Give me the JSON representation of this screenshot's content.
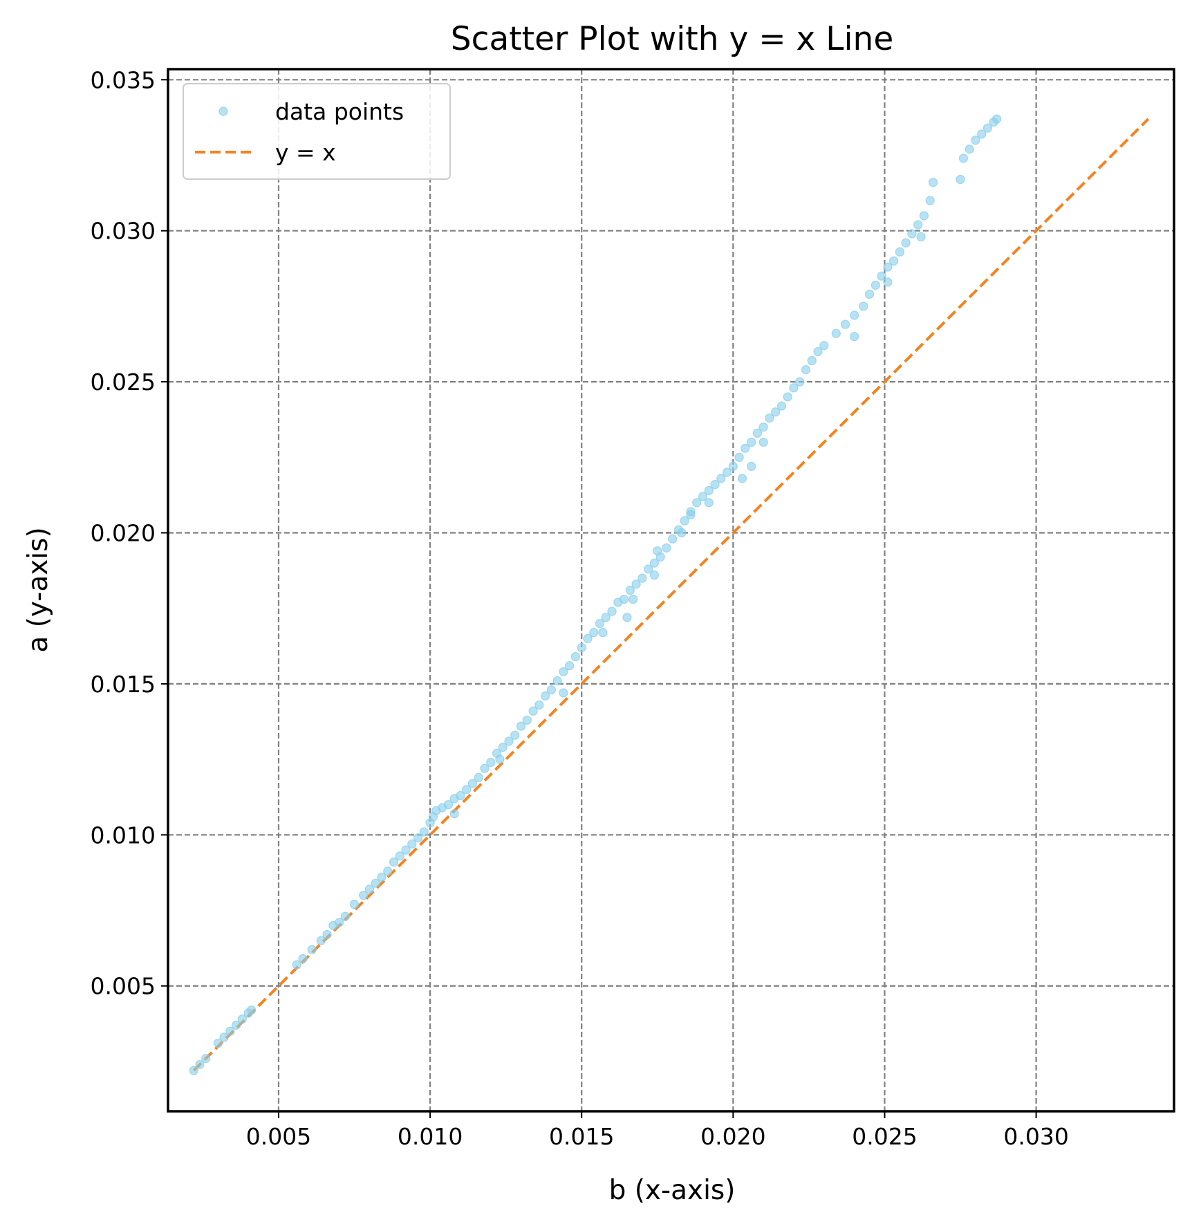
{
  "chart_data": {
    "type": "scatter",
    "title": "Scatter Plot with y = x Line",
    "xlabel": "b (x-axis)",
    "ylabel": "a (y-axis)",
    "xlim": [
      0.00135,
      0.03455
    ],
    "ylim": [
      0.00085,
      0.03535
    ],
    "x_ticks": [
      0.005,
      0.01,
      0.015,
      0.02,
      0.025,
      0.03
    ],
    "x_tick_labels": [
      "0.005",
      "0.010",
      "0.015",
      "0.020",
      "0.025",
      "0.030"
    ],
    "y_ticks": [
      0.005,
      0.01,
      0.015,
      0.02,
      0.025,
      0.03,
      0.035
    ],
    "y_tick_labels": [
      "0.005",
      "0.010",
      "0.015",
      "0.020",
      "0.025",
      "0.030",
      "0.035"
    ],
    "grid": true,
    "legend_position": "top-left",
    "series": [
      {
        "name": "data points",
        "kind": "scatter",
        "color": "#87ceeb",
        "points": [
          [
            0.0022,
            0.0022
          ],
          [
            0.0024,
            0.0024
          ],
          [
            0.0026,
            0.0026
          ],
          [
            0.003,
            0.0031
          ],
          [
            0.0032,
            0.0033
          ],
          [
            0.0034,
            0.0035
          ],
          [
            0.0036,
            0.0037
          ],
          [
            0.0038,
            0.0039
          ],
          [
            0.004,
            0.0041
          ],
          [
            0.0041,
            0.0042
          ],
          [
            0.0056,
            0.0057
          ],
          [
            0.0058,
            0.0059
          ],
          [
            0.0061,
            0.0062
          ],
          [
            0.0064,
            0.0065
          ],
          [
            0.0066,
            0.0067
          ],
          [
            0.0068,
            0.007
          ],
          [
            0.007,
            0.0071
          ],
          [
            0.0072,
            0.0073
          ],
          [
            0.0075,
            0.0077
          ],
          [
            0.0078,
            0.008
          ],
          [
            0.008,
            0.0082
          ],
          [
            0.0082,
            0.0084
          ],
          [
            0.0084,
            0.0086
          ],
          [
            0.0086,
            0.0088
          ],
          [
            0.0088,
            0.0091
          ],
          [
            0.009,
            0.0093
          ],
          [
            0.0092,
            0.0095
          ],
          [
            0.0094,
            0.0097
          ],
          [
            0.0096,
            0.0099
          ],
          [
            0.0098,
            0.0101
          ],
          [
            0.01,
            0.0104
          ],
          [
            0.0101,
            0.0106
          ],
          [
            0.0102,
            0.0108
          ],
          [
            0.0104,
            0.0109
          ],
          [
            0.0106,
            0.011
          ],
          [
            0.0108,
            0.0112
          ],
          [
            0.011,
            0.0113
          ],
          [
            0.0112,
            0.0115
          ],
          [
            0.0114,
            0.0117
          ],
          [
            0.0116,
            0.0119
          ],
          [
            0.0118,
            0.0122
          ],
          [
            0.012,
            0.0124
          ],
          [
            0.0122,
            0.0127
          ],
          [
            0.0124,
            0.0129
          ],
          [
            0.0126,
            0.0131
          ],
          [
            0.0128,
            0.0133
          ],
          [
            0.013,
            0.0136
          ],
          [
            0.0132,
            0.0138
          ],
          [
            0.0134,
            0.0141
          ],
          [
            0.0136,
            0.0143
          ],
          [
            0.0138,
            0.0146
          ],
          [
            0.014,
            0.0148
          ],
          [
            0.0142,
            0.0151
          ],
          [
            0.0144,
            0.0154
          ],
          [
            0.0146,
            0.0156
          ],
          [
            0.0148,
            0.0159
          ],
          [
            0.015,
            0.0162
          ],
          [
            0.0152,
            0.0165
          ],
          [
            0.0154,
            0.0167
          ],
          [
            0.0156,
            0.017
          ],
          [
            0.0158,
            0.0172
          ],
          [
            0.016,
            0.0174
          ],
          [
            0.0162,
            0.0177
          ],
          [
            0.0164,
            0.0178
          ],
          [
            0.0166,
            0.0181
          ],
          [
            0.0168,
            0.0183
          ],
          [
            0.017,
            0.0185
          ],
          [
            0.0172,
            0.0188
          ],
          [
            0.0174,
            0.019
          ],
          [
            0.0176,
            0.0192
          ],
          [
            0.0178,
            0.0195
          ],
          [
            0.018,
            0.0198
          ],
          [
            0.0182,
            0.0201
          ],
          [
            0.0184,
            0.0204
          ],
          [
            0.0186,
            0.0207
          ],
          [
            0.0188,
            0.021
          ],
          [
            0.019,
            0.0212
          ],
          [
            0.0192,
            0.0214
          ],
          [
            0.0194,
            0.0216
          ],
          [
            0.0196,
            0.0218
          ],
          [
            0.0198,
            0.022
          ],
          [
            0.02,
            0.0222
          ],
          [
            0.0202,
            0.0225
          ],
          [
            0.0204,
            0.0228
          ],
          [
            0.0206,
            0.023
          ],
          [
            0.0208,
            0.0233
          ],
          [
            0.021,
            0.0235
          ],
          [
            0.0212,
            0.0238
          ],
          [
            0.0214,
            0.024
          ],
          [
            0.0216,
            0.0242
          ],
          [
            0.0218,
            0.0245
          ],
          [
            0.022,
            0.0248
          ],
          [
            0.0222,
            0.025
          ],
          [
            0.0224,
            0.0254
          ],
          [
            0.0226,
            0.0257
          ],
          [
            0.0228,
            0.026
          ],
          [
            0.023,
            0.0262
          ],
          [
            0.0234,
            0.0266
          ],
          [
            0.0237,
            0.0269
          ],
          [
            0.024,
            0.0272
          ],
          [
            0.0243,
            0.0275
          ],
          [
            0.0245,
            0.0279
          ],
          [
            0.0247,
            0.0282
          ],
          [
            0.0249,
            0.0285
          ],
          [
            0.0251,
            0.0288
          ],
          [
            0.0253,
            0.029
          ],
          [
            0.0255,
            0.0293
          ],
          [
            0.0257,
            0.0296
          ],
          [
            0.0259,
            0.0299
          ],
          [
            0.0261,
            0.0302
          ],
          [
            0.0263,
            0.0305
          ],
          [
            0.0265,
            0.031
          ],
          [
            0.0266,
            0.0316
          ],
          [
            0.0276,
            0.0324
          ],
          [
            0.0278,
            0.0327
          ],
          [
            0.028,
            0.033
          ],
          [
            0.0282,
            0.0332
          ],
          [
            0.0284,
            0.0334
          ],
          [
            0.0286,
            0.0336
          ],
          [
            0.0287,
            0.0337
          ],
          [
            0.0275,
            0.0317
          ],
          [
            0.024,
            0.0265
          ],
          [
            0.0251,
            0.0283
          ],
          [
            0.0262,
            0.0298
          ],
          [
            0.0203,
            0.0218
          ],
          [
            0.0186,
            0.0206
          ],
          [
            0.0174,
            0.0186
          ],
          [
            0.0165,
            0.0172
          ],
          [
            0.0144,
            0.0147
          ],
          [
            0.0123,
            0.0125
          ],
          [
            0.0108,
            0.0107
          ],
          [
            0.0175,
            0.0194
          ],
          [
            0.0192,
            0.021
          ],
          [
            0.0167,
            0.0178
          ],
          [
            0.0157,
            0.0167
          ],
          [
            0.021,
            0.023
          ],
          [
            0.0183,
            0.02
          ],
          [
            0.0206,
            0.0222
          ]
        ]
      },
      {
        "name": "y = x",
        "kind": "line",
        "color": "#f5821f",
        "x": [
          0.0022,
          0.0337
        ],
        "y": [
          0.0022,
          0.0337
        ]
      }
    ]
  }
}
